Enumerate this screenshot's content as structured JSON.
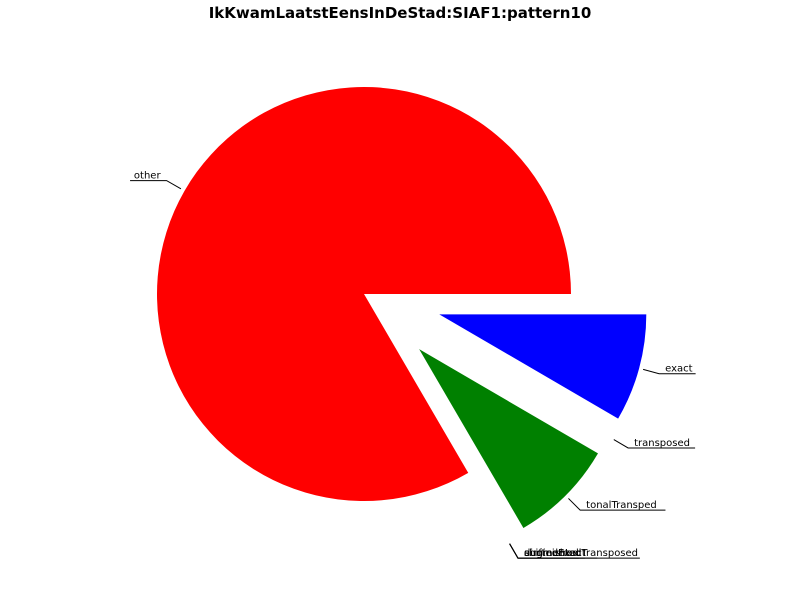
{
  "chart_data": {
    "type": "pie",
    "title": "IkKwamLaatstEensInDeStad:SIAF1:pattern10",
    "start_angle_deg": 0,
    "direction": "clockwise",
    "slices": [
      {
        "label": "exact",
        "value": 0.084,
        "color": "#0000ff",
        "explode": true
      },
      {
        "label": "transposed",
        "value": 0.0,
        "color": "#ffff00",
        "explode": true
      },
      {
        "label": "tonalTransped",
        "value": 0.082,
        "color": "#008000",
        "explode": true
      },
      {
        "label": "shiftedExact",
        "value": 0.0,
        "color": "#00ffff",
        "explode": true
      },
      {
        "label": "augmented",
        "value": 0.0,
        "color": "#ff00ff",
        "explode": true
      },
      {
        "label": "diminished",
        "value": 0.0,
        "color": "#808080",
        "explode": true
      },
      {
        "label": "augmentedTransposed",
        "value": 0.0,
        "color": "#ffa500",
        "explode": true
      },
      {
        "label": "other",
        "value": 0.834,
        "color": "#ff0000",
        "explode": false
      }
    ]
  }
}
